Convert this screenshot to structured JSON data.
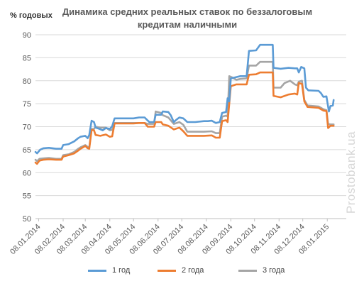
{
  "chart_data": {
    "type": "line",
    "title": "Динамика средних реальных ставок по беззалоговым кредитам наличными",
    "ylabel": "% годовых",
    "xlabel": "",
    "ylim": [
      50,
      90
    ],
    "yticks": [
      50,
      55,
      60,
      65,
      70,
      75,
      80,
      85,
      90
    ],
    "xlim": [
      "2014-01-04",
      "2015-02-01"
    ],
    "xtick_dates": [
      "2014-01-08",
      "2014-02-08",
      "2014-03-08",
      "2014-04-08",
      "2014-05-08",
      "2014-06-08",
      "2014-07-08",
      "2014-08-08",
      "2014-09-08",
      "2014-10-08",
      "2014-11-08",
      "2014-12-08",
      "2015-01-08"
    ],
    "xtick_labels": [
      "08.01.2014",
      "08.02.2014",
      "08.03.2014",
      "08.04.2014",
      "08.05.2014",
      "08.06.2014",
      "08.07.2014",
      "08.08.2014",
      "08.09.2014",
      "08.10.2014",
      "08.11.2014",
      "08.12.2014",
      "08.01.2015"
    ],
    "grid": true,
    "legend_position": "bottom",
    "series": [
      {
        "name": "1 год",
        "color": "#5b9bd5",
        "points": [
          [
            "2014-01-04",
            64.5
          ],
          [
            "2014-01-06",
            64.2
          ],
          [
            "2014-01-10",
            65.0
          ],
          [
            "2014-01-14",
            65.3
          ],
          [
            "2014-01-21",
            65.4
          ],
          [
            "2014-01-30",
            65.2
          ],
          [
            "2014-02-06",
            65.2
          ],
          [
            "2014-02-08",
            66.0
          ],
          [
            "2014-02-15",
            66.2
          ],
          [
            "2014-02-22",
            66.8
          ],
          [
            "2014-02-27",
            67.5
          ],
          [
            "2014-03-02",
            67.8
          ],
          [
            "2014-03-08",
            68.0
          ],
          [
            "2014-03-11",
            67.5
          ],
          [
            "2014-03-13",
            68.2
          ],
          [
            "2014-03-16",
            71.3
          ],
          [
            "2014-03-19",
            71.0
          ],
          [
            "2014-03-21",
            69.8
          ],
          [
            "2014-03-26",
            69.5
          ],
          [
            "2014-03-30",
            69.2
          ],
          [
            "2014-04-03",
            69.7
          ],
          [
            "2014-04-08",
            69.5
          ],
          [
            "2014-04-11",
            70.1
          ],
          [
            "2014-04-14",
            71.8
          ],
          [
            "2014-05-08",
            71.8
          ],
          [
            "2014-05-15",
            72.0
          ],
          [
            "2014-05-22",
            72.0
          ],
          [
            "2014-05-25",
            71.5
          ],
          [
            "2014-05-28",
            71.0
          ],
          [
            "2014-06-03",
            71.0
          ],
          [
            "2014-06-05",
            72.6
          ],
          [
            "2014-06-12",
            72.6
          ],
          [
            "2014-06-14",
            73.3
          ],
          [
            "2014-06-21",
            73.2
          ],
          [
            "2014-06-24",
            72.5
          ],
          [
            "2014-06-28",
            71.0
          ],
          [
            "2014-07-01",
            71.5
          ],
          [
            "2014-07-05",
            72.0
          ],
          [
            "2014-07-10",
            71.8
          ],
          [
            "2014-07-15",
            71.0
          ],
          [
            "2014-07-25",
            71.0
          ],
          [
            "2014-08-05",
            71.2
          ],
          [
            "2014-08-10",
            71.2
          ],
          [
            "2014-08-15",
            71.3
          ],
          [
            "2014-08-20",
            70.8
          ],
          [
            "2014-08-25",
            71.0
          ],
          [
            "2014-08-28",
            73.0
          ],
          [
            "2014-09-02",
            73.2
          ],
          [
            "2014-09-04",
            76.2
          ],
          [
            "2014-09-06",
            75.5
          ],
          [
            "2014-09-08",
            80.5
          ],
          [
            "2014-09-15",
            80.8
          ],
          [
            "2014-09-20",
            81.0
          ],
          [
            "2014-09-28",
            81.0
          ],
          [
            "2014-10-01",
            86.5
          ],
          [
            "2014-10-10",
            86.6
          ],
          [
            "2014-10-15",
            87.8
          ],
          [
            "2014-10-28",
            87.8
          ],
          [
            "2014-10-31",
            87.8
          ],
          [
            "2014-11-01",
            82.8
          ],
          [
            "2014-11-10",
            82.6
          ],
          [
            "2014-11-20",
            82.8
          ],
          [
            "2014-11-28",
            82.7
          ],
          [
            "2014-12-01",
            82.7
          ],
          [
            "2014-12-03",
            81.8
          ],
          [
            "2014-12-06",
            83.0
          ],
          [
            "2014-12-10",
            82.7
          ],
          [
            "2014-12-12",
            78.5
          ],
          [
            "2014-12-15",
            77.9
          ],
          [
            "2014-12-28",
            77.8
          ],
          [
            "2014-12-31",
            77.3
          ],
          [
            "2015-01-03",
            76.5
          ],
          [
            "2015-01-07",
            76.6
          ],
          [
            "2015-01-10",
            73.3
          ],
          [
            "2015-01-12",
            74.5
          ],
          [
            "2015-01-15",
            74.6
          ],
          [
            "2015-01-16",
            75.8
          ]
        ]
      },
      {
        "name": "2 года",
        "color": "#ed7d31",
        "points": [
          [
            "2014-01-04",
            62.2
          ],
          [
            "2014-01-06",
            61.9
          ],
          [
            "2014-01-09",
            62.6
          ],
          [
            "2014-01-14",
            62.8
          ],
          [
            "2014-01-21",
            62.9
          ],
          [
            "2014-01-30",
            62.8
          ],
          [
            "2014-02-06",
            62.8
          ],
          [
            "2014-02-08",
            63.5
          ],
          [
            "2014-02-15",
            63.8
          ],
          [
            "2014-02-22",
            64.2
          ],
          [
            "2014-02-27",
            64.8
          ],
          [
            "2014-03-02",
            65.2
          ],
          [
            "2014-03-08",
            65.8
          ],
          [
            "2014-03-11",
            65.3
          ],
          [
            "2014-03-13",
            65.2
          ],
          [
            "2014-03-16",
            69.3
          ],
          [
            "2014-03-19",
            69.2
          ],
          [
            "2014-03-21",
            68.2
          ],
          [
            "2014-03-27",
            68.0
          ],
          [
            "2014-04-03",
            68.3
          ],
          [
            "2014-04-08",
            67.8
          ],
          [
            "2014-04-11",
            67.9
          ],
          [
            "2014-04-14",
            70.7
          ],
          [
            "2014-05-08",
            70.7
          ],
          [
            "2014-05-15",
            70.8
          ],
          [
            "2014-05-22",
            70.8
          ],
          [
            "2014-05-26",
            70.0
          ],
          [
            "2014-06-03",
            70.0
          ],
          [
            "2014-06-05",
            71.0
          ],
          [
            "2014-06-12",
            71.0
          ],
          [
            "2014-06-14",
            70.5
          ],
          [
            "2014-06-21",
            70.2
          ],
          [
            "2014-06-28",
            69.4
          ],
          [
            "2014-07-05",
            69.8
          ],
          [
            "2014-07-10",
            69.0
          ],
          [
            "2014-07-15",
            68.0
          ],
          [
            "2014-07-25",
            68.0
          ],
          [
            "2014-08-05",
            68.0
          ],
          [
            "2014-08-15",
            68.1
          ],
          [
            "2014-08-20",
            67.6
          ],
          [
            "2014-08-25",
            67.6
          ],
          [
            "2014-08-28",
            71.2
          ],
          [
            "2014-09-02",
            71.4
          ],
          [
            "2014-09-04",
            71.0
          ],
          [
            "2014-09-08",
            78.8
          ],
          [
            "2014-09-15",
            79.2
          ],
          [
            "2014-09-28",
            79.2
          ],
          [
            "2014-10-01",
            81.3
          ],
          [
            "2014-10-10",
            81.4
          ],
          [
            "2014-10-15",
            81.8
          ],
          [
            "2014-10-31",
            81.8
          ],
          [
            "2014-11-01",
            76.7
          ],
          [
            "2014-11-10",
            76.4
          ],
          [
            "2014-11-20",
            77.0
          ],
          [
            "2014-11-28",
            77.2
          ],
          [
            "2014-12-01",
            77.0
          ],
          [
            "2014-12-03",
            79.5
          ],
          [
            "2014-12-07",
            79.3
          ],
          [
            "2014-12-10",
            75.5
          ],
          [
            "2014-12-14",
            74.3
          ],
          [
            "2014-12-28",
            74.1
          ],
          [
            "2015-01-03",
            73.5
          ],
          [
            "2015-01-07",
            73.4
          ],
          [
            "2015-01-09",
            69.7
          ],
          [
            "2015-01-12",
            70.2
          ],
          [
            "2015-01-16",
            70.2
          ]
        ]
      },
      {
        "name": "3 года",
        "color": "#a5a5a5",
        "points": [
          [
            "2014-01-04",
            62.8
          ],
          [
            "2014-01-06",
            62.5
          ],
          [
            "2014-01-09",
            63.0
          ],
          [
            "2014-01-14",
            63.1
          ],
          [
            "2014-01-21",
            63.2
          ],
          [
            "2014-01-30",
            63.0
          ],
          [
            "2014-02-06",
            63.0
          ],
          [
            "2014-02-08",
            63.8
          ],
          [
            "2014-02-15",
            64.0
          ],
          [
            "2014-02-22",
            64.5
          ],
          [
            "2014-02-27",
            65.2
          ],
          [
            "2014-03-02",
            65.5
          ],
          [
            "2014-03-08",
            66.0
          ],
          [
            "2014-03-11",
            65.6
          ],
          [
            "2014-03-13",
            65.5
          ],
          [
            "2014-03-16",
            69.5
          ],
          [
            "2014-03-19",
            69.5
          ],
          [
            "2014-03-21",
            70.0
          ],
          [
            "2014-03-27",
            69.8
          ],
          [
            "2014-04-03",
            69.8
          ],
          [
            "2014-04-08",
            69.2
          ],
          [
            "2014-04-11",
            69.3
          ],
          [
            "2014-04-14",
            70.8
          ],
          [
            "2014-05-08",
            70.8
          ],
          [
            "2014-05-15",
            70.8
          ],
          [
            "2014-05-22",
            70.8
          ],
          [
            "2014-05-26",
            70.6
          ],
          [
            "2014-06-03",
            70.6
          ],
          [
            "2014-06-05",
            73.3
          ],
          [
            "2014-06-12",
            73.0
          ],
          [
            "2014-06-14",
            72.5
          ],
          [
            "2014-06-21",
            72.0
          ],
          [
            "2014-06-28",
            70.6
          ],
          [
            "2014-07-05",
            71.0
          ],
          [
            "2014-07-10",
            70.4
          ],
          [
            "2014-07-15",
            68.9
          ],
          [
            "2014-07-25",
            68.9
          ],
          [
            "2014-08-05",
            68.9
          ],
          [
            "2014-08-15",
            69.0
          ],
          [
            "2014-08-20",
            68.6
          ],
          [
            "2014-08-25",
            68.6
          ],
          [
            "2014-08-28",
            72.2
          ],
          [
            "2014-09-02",
            72.4
          ],
          [
            "2014-09-04",
            72.2
          ],
          [
            "2014-09-06",
            81.0
          ],
          [
            "2014-09-10",
            80.7
          ],
          [
            "2014-09-15",
            80.2
          ],
          [
            "2014-09-20",
            80.4
          ],
          [
            "2014-09-28",
            80.5
          ],
          [
            "2014-10-01",
            83.3
          ],
          [
            "2014-10-10",
            83.3
          ],
          [
            "2014-10-15",
            84.1
          ],
          [
            "2014-10-31",
            84.1
          ],
          [
            "2014-11-01",
            78.5
          ],
          [
            "2014-11-10",
            78.5
          ],
          [
            "2014-11-15",
            79.5
          ],
          [
            "2014-11-22",
            80.0
          ],
          [
            "2014-11-28",
            79.2
          ],
          [
            "2014-12-01",
            79.0
          ],
          [
            "2014-12-03",
            79.8
          ],
          [
            "2014-12-07",
            80.0
          ],
          [
            "2014-12-10",
            75.8
          ],
          [
            "2014-12-14",
            74.6
          ],
          [
            "2014-12-28",
            74.4
          ],
          [
            "2015-01-03",
            73.8
          ],
          [
            "2015-01-07",
            73.6
          ],
          [
            "2015-01-09",
            70.6
          ],
          [
            "2015-01-12",
            70.5
          ],
          [
            "2015-01-16",
            70.5
          ]
        ]
      }
    ]
  },
  "watermark": "Prostobank.ua"
}
